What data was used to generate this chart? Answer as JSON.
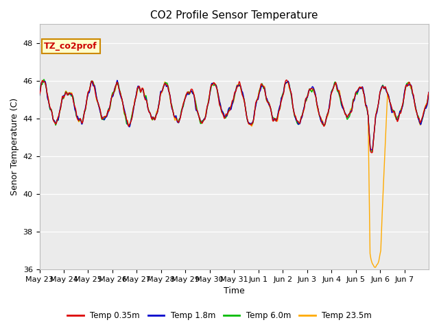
{
  "title": "CO2 Profile Sensor Temperature",
  "ylabel": "Senor Temperature (C)",
  "xlabel": "Time",
  "ylim": [
    36,
    49
  ],
  "yticks": [
    36,
    38,
    40,
    42,
    44,
    46,
    48
  ],
  "annotation_text": "TZ_co2prof",
  "annotation_color": "#cc0000",
  "annotation_bg": "#ffffcc",
  "annotation_border": "#cc8800",
  "legend_labels": [
    "Temp 0.35m",
    "Temp 1.8m",
    "Temp 6.0m",
    "Temp 23.5m"
  ],
  "line_colors": [
    "#dd0000",
    "#0000cc",
    "#00bb00",
    "#ffaa00"
  ],
  "bg_color": "#ebebeb",
  "date_labels": [
    "May 23",
    "May 24",
    "May 25",
    "May 26",
    "May 27",
    "May 28",
    "May 29",
    "May 30",
    "May 31",
    "Jun 1",
    "Jun 2",
    "Jun 3",
    "Jun 4",
    "Jun 5",
    "Jun 6",
    "Jun 7"
  ],
  "title_fontsize": 11,
  "axis_fontsize": 9,
  "tick_fontsize": 8
}
